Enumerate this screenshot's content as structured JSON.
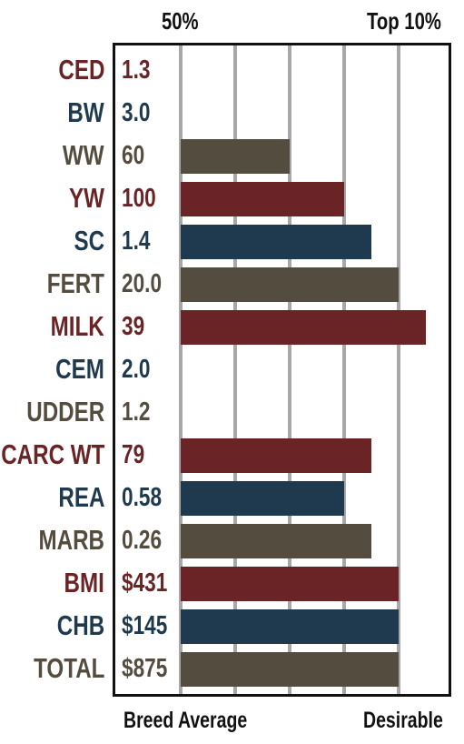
{
  "header": {
    "left_label": "50%",
    "right_label": "Top 10%"
  },
  "footer": {
    "left_label": "Breed Average",
    "right_label": "Desirable"
  },
  "colors": {
    "red": "#6b2426",
    "blue": "#1f3a4e",
    "brown": "#534c3f",
    "grid": "#a8a8ab",
    "frame": "#111111"
  },
  "chart_data": {
    "type": "bar",
    "orientation": "horizontal",
    "categories": [
      "CED",
      "BW",
      "WW",
      "YW",
      "SC",
      "FERT",
      "MILK",
      "CEM",
      "UDDER",
      "CARC WT",
      "REA",
      "MARB",
      "BMI",
      "CHB",
      "TOTAL"
    ],
    "value_labels": [
      "1.3",
      "3.0",
      "60",
      "100",
      "1.4",
      "20.0",
      "39",
      "2.0",
      "1.2",
      "79",
      "0.58",
      "0.26",
      "$431",
      "$145",
      "$875"
    ],
    "values": [
      0,
      0,
      2,
      3,
      3.5,
      4,
      4.5,
      0,
      0,
      3.5,
      3,
      3.5,
      4,
      4,
      4
    ],
    "color_keys": [
      "red",
      "blue",
      "brown",
      "red",
      "blue",
      "brown",
      "red",
      "blue",
      "brown",
      "red",
      "blue",
      "brown",
      "red",
      "blue",
      "brown"
    ],
    "xlim": [
      0,
      5
    ],
    "gridlines": [
      0,
      1,
      2,
      3,
      4
    ],
    "xlabel_left": "Breed Average",
    "xlabel_right": "Desirable",
    "top_left": "50%",
    "top_right": "Top 10%",
    "grid": true
  }
}
